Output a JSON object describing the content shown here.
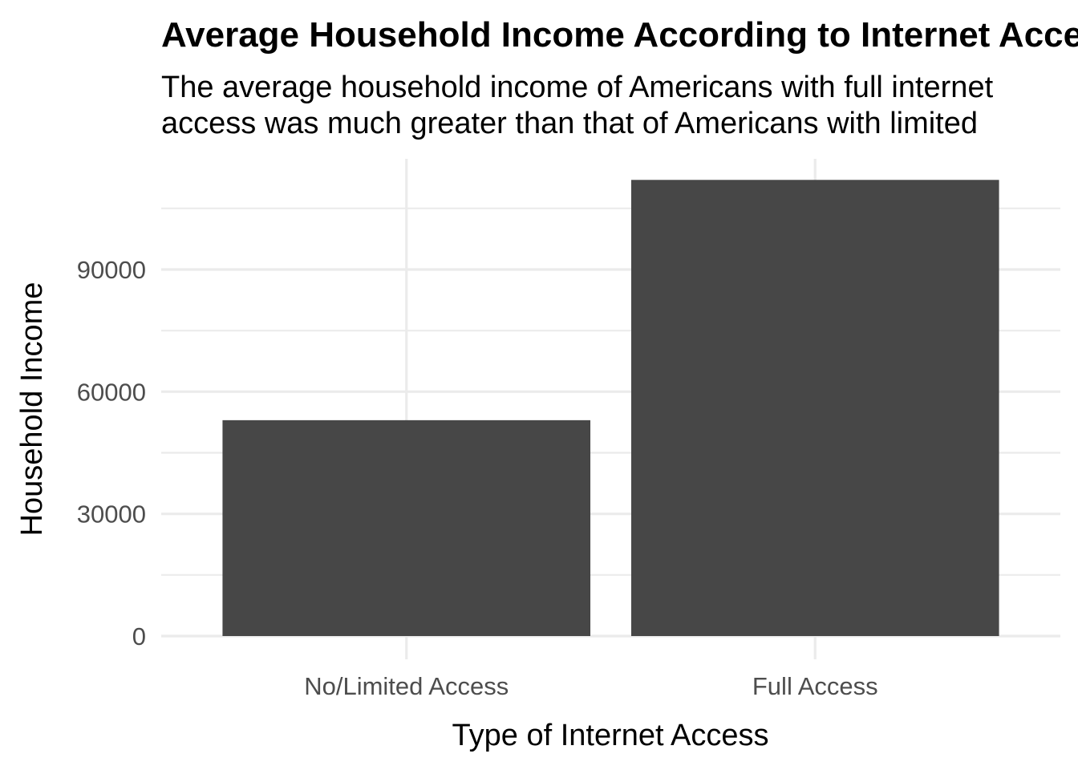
{
  "chart_data": {
    "type": "bar",
    "title": "Average Household Income According to Internet Access",
    "subtitle_lines": [
      "The average household income of Americans with full internet",
      "access was much greater than that of Americans with limited"
    ],
    "xlabel": "Type of Internet Access",
    "ylabel": "Household Income",
    "categories": [
      "No/Limited Access",
      "Full Access"
    ],
    "values": [
      53000,
      112000
    ],
    "yticks": [
      0,
      30000,
      60000,
      90000
    ],
    "ytick_labels": [
      "0",
      "30000",
      "60000",
      "90000"
    ],
    "ylim": [
      0,
      117500
    ],
    "grid": true,
    "bar_color": "#474747",
    "grid_color": "#ebebeb"
  }
}
